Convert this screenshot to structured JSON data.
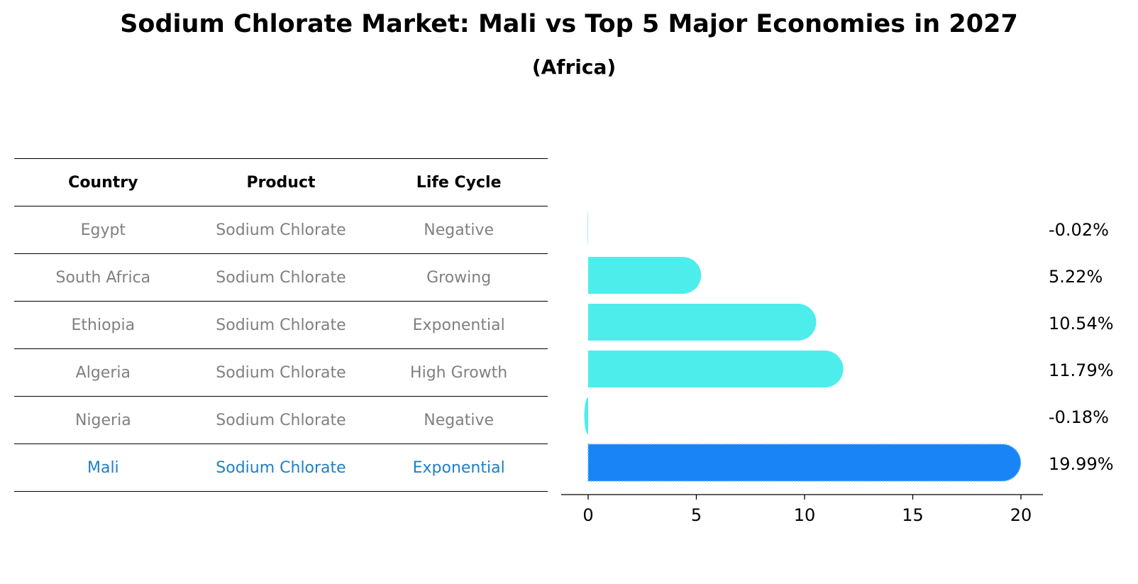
{
  "title": "Sodium Chlorate Market: Mali vs Top 5 Major Economies in 2027",
  "subtitle": "(Africa)",
  "table": {
    "headers": [
      "Country",
      "Product",
      "Life Cycle"
    ],
    "rows": [
      {
        "country": "Egypt",
        "product": "Sodium Chlorate",
        "life_cycle": "Negative",
        "highlight": false
      },
      {
        "country": "South Africa",
        "product": "Sodium Chlorate",
        "life_cycle": "Growing",
        "highlight": false
      },
      {
        "country": "Ethiopia",
        "product": "Sodium Chlorate",
        "life_cycle": "Exponential",
        "highlight": false
      },
      {
        "country": "Algeria",
        "product": "Sodium Chlorate",
        "life_cycle": "High Growth",
        "highlight": false
      },
      {
        "country": "Nigeria",
        "product": "Sodium Chlorate",
        "life_cycle": "Negative",
        "highlight": false
      },
      {
        "country": "Mali",
        "product": "Sodium Chlorate",
        "life_cycle": "Exponential",
        "highlight": true
      }
    ]
  },
  "colors": {
    "bar": "#4dedec",
    "highlight_bar": "#1984f5",
    "highlight_text": "#1f7fc4",
    "table_text": "#808080"
  },
  "chart_data": {
    "type": "bar",
    "orientation": "horizontal",
    "categories": [
      "Egypt",
      "South Africa",
      "Ethiopia",
      "Algeria",
      "Nigeria",
      "Mali"
    ],
    "values": [
      -0.02,
      5.22,
      10.54,
      11.79,
      -0.18,
      19.99
    ],
    "value_labels": [
      "-0.02%",
      "5.22%",
      "10.54%",
      "11.79%",
      "-0.18%",
      "19.99%"
    ],
    "highlight": "Mali",
    "xlim": [
      -1.2,
      21
    ],
    "xticks": [
      0,
      5,
      10,
      15,
      20
    ],
    "grid": false
  }
}
